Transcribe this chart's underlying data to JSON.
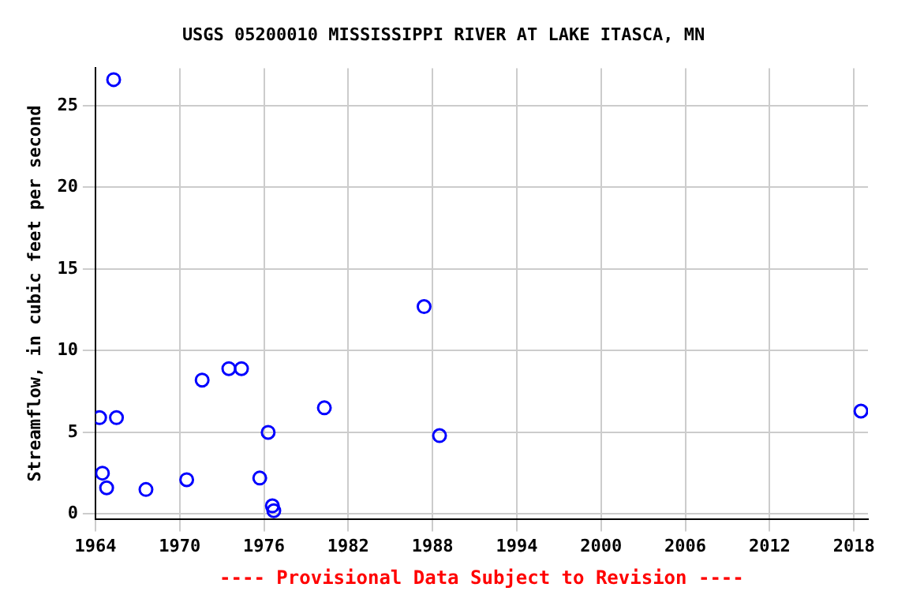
{
  "chart_data": {
    "type": "scatter",
    "title": "USGS 05200010 MISSISSIPPI RIVER AT LAKE ITASCA, MN",
    "ylabel": "Streamflow, in cubic feet per second",
    "annotations": [
      "---- Provisional Data Subject to Revision ----"
    ],
    "x": [
      1964.3,
      1964.5,
      1964.8,
      1965.3,
      1965.5,
      1967.6,
      1970.5,
      1971.6,
      1973.5,
      1974.4,
      1975.7,
      1976.3,
      1976.6,
      1976.7,
      1980.3,
      1987.4,
      1988.5,
      2018.5
    ],
    "values": [
      5.9,
      2.5,
      1.6,
      26.6,
      5.9,
      1.5,
      2.1,
      8.2,
      8.9,
      8.9,
      2.2,
      5.0,
      0.5,
      0.2,
      6.5,
      12.7,
      4.8,
      6.3
    ],
    "color": "#0000ff",
    "marker": "circle",
    "grid": true,
    "legend": false,
    "xlim": [
      1964,
      2019
    ],
    "xticks": [
      1964,
      1970,
      1976,
      1982,
      1988,
      1994,
      2000,
      2006,
      2012,
      2018
    ],
    "ylim": [
      -0.3,
      27.3
    ],
    "yticks": [
      0,
      5,
      10,
      15,
      20,
      25
    ]
  }
}
